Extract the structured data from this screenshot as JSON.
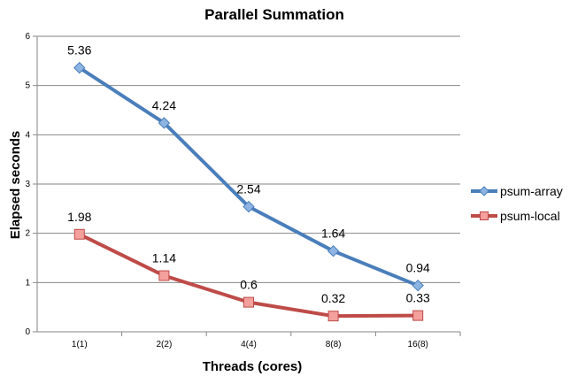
{
  "chart_data": {
    "type": "line",
    "title": "Parallel Summation",
    "xlabel": "Threads (cores)",
    "ylabel": "Elapsed seconds",
    "categories": [
      "1(1)",
      "2(2)",
      "4(4)",
      "8(8)",
      "16(8)"
    ],
    "ylim": [
      0,
      6
    ],
    "yticks": [
      "0",
      "1",
      "2",
      "3",
      "4",
      "5",
      "6"
    ],
    "grid": true,
    "legend_position": "right",
    "series": [
      {
        "name": "psum-array",
        "values": [
          5.36,
          4.24,
          2.54,
          1.64,
          0.94
        ],
        "labels": [
          "5.36",
          "4.24",
          "2.54",
          "1.64",
          "0.94"
        ],
        "color": "#4a7ebb",
        "marker": "diamond",
        "marker_fill": "#8db4e2"
      },
      {
        "name": "psum-local",
        "values": [
          1.98,
          1.14,
          0.6,
          0.32,
          0.33
        ],
        "labels": [
          "1.98",
          "1.14",
          "0.6",
          "0.32",
          "0.33"
        ],
        "color": "#be4b48",
        "marker": "square",
        "marker_fill": "#f4a09d"
      }
    ]
  }
}
